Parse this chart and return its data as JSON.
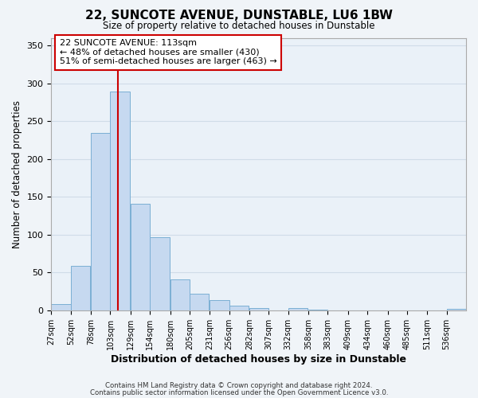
{
  "title": "22, SUNCOTE AVENUE, DUNSTABLE, LU6 1BW",
  "subtitle": "Size of property relative to detached houses in Dunstable",
  "xlabel": "Distribution of detached houses by size in Dunstable",
  "ylabel": "Number of detached properties",
  "bar_edges": [
    27,
    52,
    78,
    103,
    129,
    154,
    180,
    205,
    231,
    256,
    282,
    307,
    332,
    358,
    383,
    409,
    434,
    460,
    485,
    511,
    536
  ],
  "bar_heights": [
    8,
    59,
    234,
    289,
    141,
    97,
    41,
    22,
    13,
    6,
    3,
    0,
    3,
    1,
    0,
    0,
    0,
    0,
    0,
    0,
    2
  ],
  "bar_color": "#c6d9f0",
  "bar_edge_color": "#7bafd4",
  "vline_x": 113,
  "vline_color": "#cc0000",
  "ylim": [
    0,
    360
  ],
  "yticks": [
    0,
    50,
    100,
    150,
    200,
    250,
    300,
    350
  ],
  "tick_labels": [
    "27sqm",
    "52sqm",
    "78sqm",
    "103sqm",
    "129sqm",
    "154sqm",
    "180sqm",
    "205sqm",
    "231sqm",
    "256sqm",
    "282sqm",
    "307sqm",
    "332sqm",
    "358sqm",
    "383sqm",
    "409sqm",
    "434sqm",
    "460sqm",
    "485sqm",
    "511sqm",
    "536sqm"
  ],
  "annotation_title": "22 SUNCOTE AVENUE: 113sqm",
  "annotation_line1": "← 48% of detached houses are smaller (430)",
  "annotation_line2": "51% of semi-detached houses are larger (463) →",
  "footer1": "Contains HM Land Registry data © Crown copyright and database right 2024.",
  "footer2": "Contains public sector information licensed under the Open Government Licence v3.0.",
  "grid_color": "#d0dce8",
  "background_color": "#eaf1f8",
  "fig_background": "#f0f4f8"
}
